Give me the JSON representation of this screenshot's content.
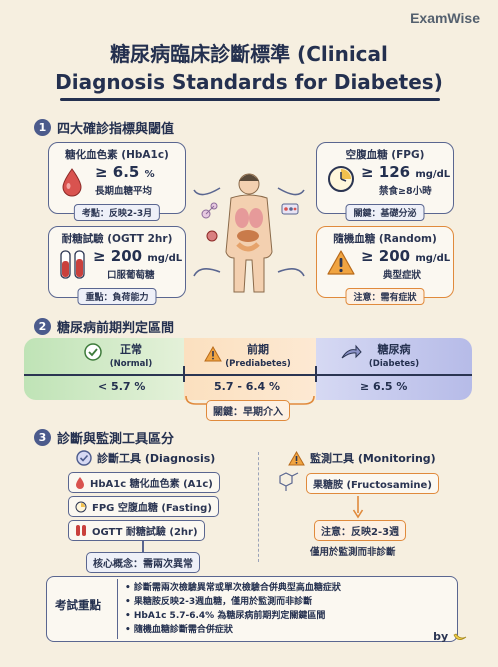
{
  "brand": "ExamWise",
  "title_line1": "糖尿病臨床診斷標準 (Clinical",
  "title_line2": "Diagnosis Standards for Diabetes)",
  "section1": {
    "num": "1",
    "title": "四大確診指標與閾值",
    "cards": [
      {
        "title": "糖化血色素 (HbA1c)",
        "value": "≥ 6.5",
        "unit": "%",
        "sub": "長期血糖平均",
        "tag": "考點：反映2-3月"
      },
      {
        "title": "空腹血糖 (FPG)",
        "value": "≥ 126",
        "unit": "mg/dL",
        "sub": "禁食≥8小時",
        "tag": "關鍵：基礎分泌"
      },
      {
        "title": "耐糖試驗 (OGTT 2hr)",
        "value": "≥ 200",
        "unit": "mg/dL",
        "sub": "口服葡萄糖",
        "tag": "重點：負荷能力"
      },
      {
        "title": "隨機血糖 (Random)",
        "value": "≥ 200",
        "unit": "mg/dL",
        "sub": "典型症狀",
        "tag": "注意：需有症狀"
      }
    ]
  },
  "section2": {
    "num": "2",
    "title": "糖尿病前期判定區間",
    "stages": [
      {
        "name": "正常",
        "en": "(Normal)",
        "range": "< 5.7 %"
      },
      {
        "name": "前期",
        "en": "(Prediabetes)",
        "range": "5.7 - 6.4 %"
      },
      {
        "name": "糖尿病",
        "en": "(Diabetes)",
        "range": "≥ 6.5 %"
      }
    ],
    "key_point": "關鍵：早期介入"
  },
  "section3": {
    "num": "3",
    "title": "診斷與監測工具區分",
    "diagnosis_head": "診斷工具 (Diagnosis)",
    "diagnosis_items": [
      "HbA1c 糖化血色素 (A1c)",
      "FPG  空腹血糖 (Fasting)",
      "OGTT  耐糖試驗 (2hr)"
    ],
    "diagnosis_note": "核心概念：需兩次異常",
    "monitoring_head": "監測工具 (Monitoring)",
    "monitoring_item": "果糖胺 (Fructosamine)",
    "monitoring_note": "注意：反映2-3週",
    "monitoring_sub": "僅用於監測而非診斷"
  },
  "exam_key": {
    "title": "考試重點",
    "items": [
      "診斷需兩次檢驗異常或單次檢驗合併典型高血糖症狀",
      "果糖胺反映2-3週血糖，僅用於監測而非診斷",
      "HbA1c 5.7-6.4% 為糖尿病前期判定關鍵區間",
      "隨機血糖診斷需合併症狀"
    ]
  },
  "by": "by",
  "colors": {
    "navy": "#24304f",
    "orange": "#e08a3c",
    "green": "#a8d5a2",
    "purple": "#aab1e0",
    "paper": "#f6efe0"
  }
}
